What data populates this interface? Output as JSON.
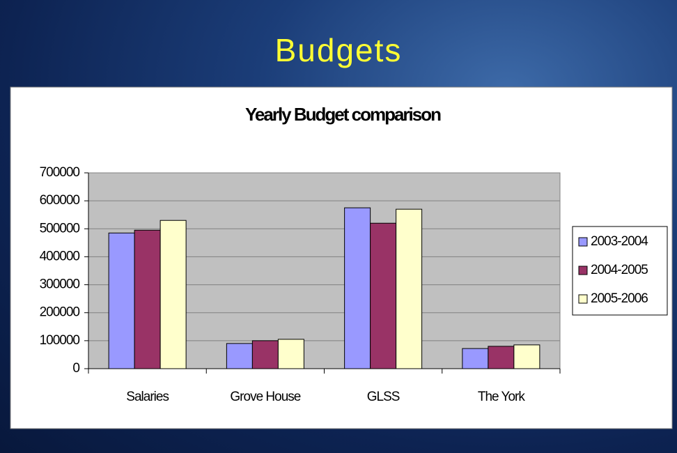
{
  "slide": {
    "title": "Budgets"
  },
  "chart_data": {
    "type": "bar",
    "title": "Yearly Budget comparison",
    "categories": [
      "Salaries",
      "Grove House",
      "GLSS",
      "The York"
    ],
    "series": [
      {
        "name": "2003-2004",
        "color": "#9999ff",
        "values": [
          485000,
          90000,
          575000,
          72000
        ]
      },
      {
        "name": "2004-2005",
        "color": "#993366",
        "values": [
          495000,
          100000,
          520000,
          80000
        ]
      },
      {
        "name": "2005-2006",
        "color": "#ffffcc",
        "values": [
          530000,
          105000,
          570000,
          85000
        ]
      }
    ],
    "ylim": [
      0,
      700000
    ],
    "yticks": [
      0,
      100000,
      200000,
      300000,
      400000,
      500000,
      600000,
      700000
    ],
    "grid": true,
    "legend": "right"
  }
}
